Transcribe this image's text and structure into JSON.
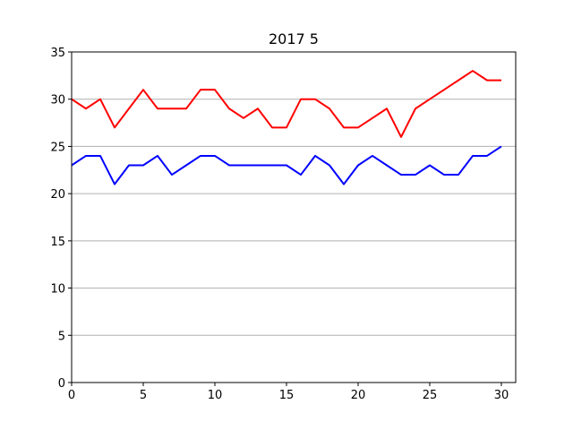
{
  "chart_data": {
    "type": "line",
    "title": "2017 5",
    "xlabel": "",
    "ylabel": "",
    "xlim": [
      0,
      31
    ],
    "ylim": [
      0,
      35
    ],
    "x_ticks": [
      0,
      5,
      10,
      15,
      20,
      25,
      30
    ],
    "y_ticks": [
      0,
      5,
      10,
      15,
      20,
      25,
      30,
      35
    ],
    "grid": "horizontal",
    "x": [
      0,
      1,
      2,
      3,
      4,
      5,
      6,
      7,
      8,
      9,
      10,
      11,
      12,
      13,
      14,
      15,
      16,
      17,
      18,
      19,
      20,
      21,
      22,
      23,
      24,
      25,
      26,
      27,
      28,
      29,
      30
    ],
    "series": [
      {
        "color": "#ff0000",
        "values": [
          30,
          29,
          30,
          27,
          29,
          31,
          29,
          29,
          29,
          31,
          31,
          29,
          28,
          29,
          27,
          27,
          30,
          30,
          29,
          27,
          27,
          28,
          29,
          26,
          29,
          30,
          31,
          32,
          33,
          32,
          32
        ]
      },
      {
        "color": "#0000ff",
        "values": [
          23,
          24,
          24,
          21,
          23,
          23,
          24,
          22,
          23,
          24,
          24,
          23,
          23,
          23,
          23,
          23,
          22,
          24,
          23,
          21,
          23,
          24,
          23,
          22,
          22,
          23,
          22,
          22,
          24,
          24,
          25
        ]
      }
    ]
  }
}
